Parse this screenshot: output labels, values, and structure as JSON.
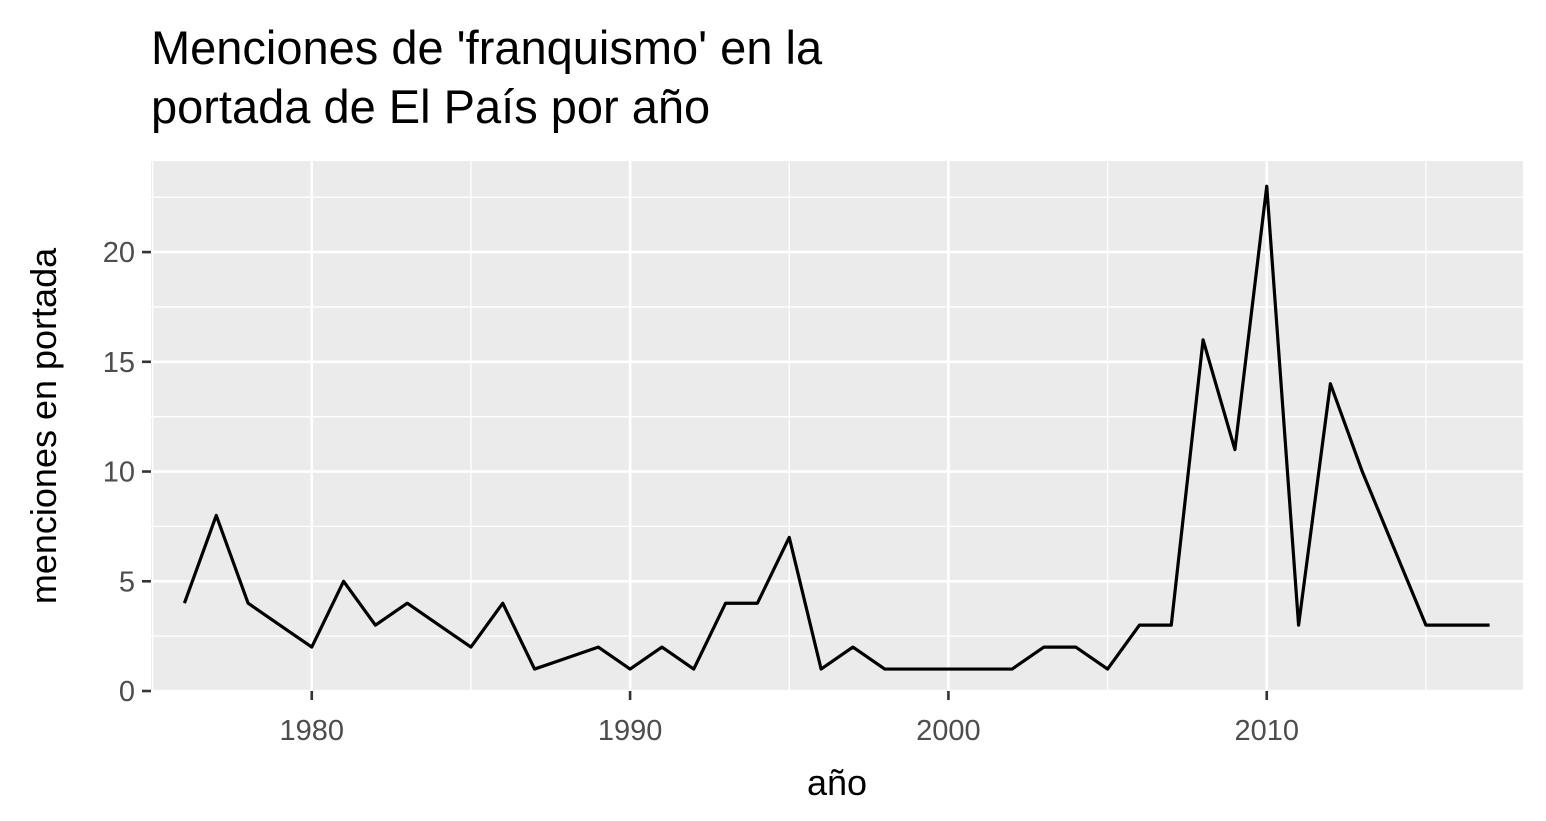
{
  "chart_data": {
    "type": "line",
    "title_lines": [
      "Menciones de 'franquismo' en la",
      "portada de El País por año"
    ],
    "xlabel": "año",
    "ylabel": "menciones en portada",
    "xlim": [
      1974.95,
      2018.05
    ],
    "ylim": [
      0,
      24.15
    ],
    "x_ticks": [
      1980,
      1990,
      2000,
      2010
    ],
    "x_tick_labels": [
      "1980",
      "1990",
      "2000",
      "2010"
    ],
    "x_minor_ticks": [
      1975,
      1985,
      1995,
      2005,
      2015
    ],
    "y_ticks": [
      0,
      5,
      10,
      15,
      20
    ],
    "y_tick_labels": [
      "0",
      "5",
      "10",
      "15",
      "20"
    ],
    "y_minor_ticks": [
      2.5,
      7.5,
      12.5,
      17.5,
      22.5
    ],
    "grid": true,
    "series": [
      {
        "color": "#000000",
        "x": [
          1976,
          1977,
          1978,
          1979,
          1980,
          1981,
          1982,
          1983,
          1984,
          1985,
          1986,
          1987,
          1988,
          1989,
          1990,
          1991,
          1992,
          1993,
          1994,
          1995,
          1996,
          1997,
          1998,
          1999,
          2000,
          2001,
          2002,
          2003,
          2004,
          2005,
          2006,
          2007,
          2008,
          2009,
          2010,
          2011,
          2012,
          2013,
          2014,
          2015,
          2016,
          2017
        ],
        "y": [
          4,
          8,
          4,
          3,
          2,
          5,
          3,
          4,
          3,
          2,
          4,
          1,
          1.5,
          2,
          1,
          2,
          1,
          4,
          4,
          7,
          1,
          2,
          1,
          1,
          1,
          1,
          1,
          2,
          2,
          1,
          3,
          3,
          16,
          11,
          23,
          3,
          14,
          10,
          6.5,
          3,
          3,
          3
        ]
      }
    ]
  }
}
